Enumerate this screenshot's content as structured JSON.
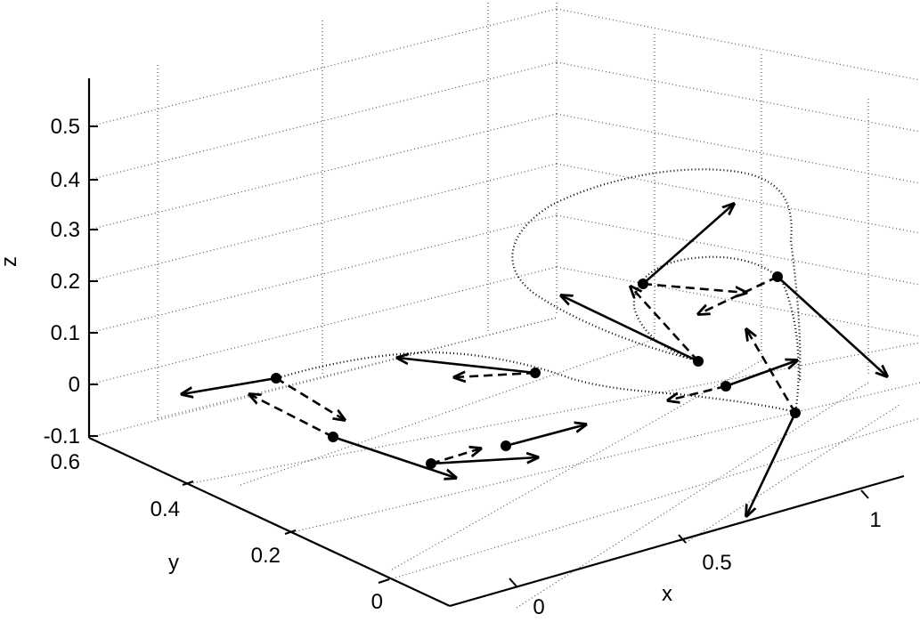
{
  "chart_data": {
    "type": "3d-line-with-vectors",
    "xlabel": "x",
    "ylabel": "y",
    "zlabel": "z",
    "xlim": [
      -0.1,
      1.2
    ],
    "ylim": [
      0,
      0.6
    ],
    "zlim": [
      -0.1,
      0.6
    ],
    "xticks": [
      "0",
      "0.5",
      "1"
    ],
    "yticks": [
      "0",
      "0.2",
      "0.4",
      "0.6"
    ],
    "zticks": [
      "-0.1",
      "0",
      "0.1",
      "0.2",
      "0.3",
      "0.4",
      "0.5"
    ],
    "grid": true,
    "colors": {
      "line": "#000000",
      "grid": "#555555"
    }
  }
}
